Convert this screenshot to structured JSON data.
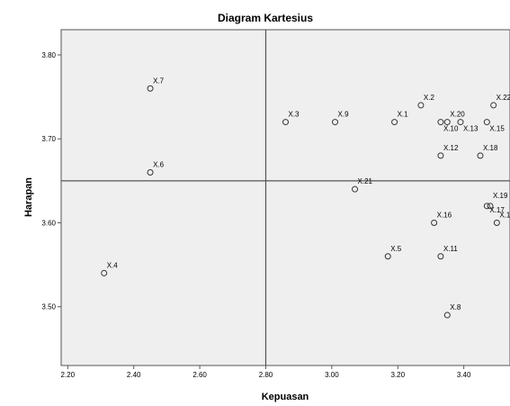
{
  "chart_data": {
    "type": "scatter",
    "title": "Diagram Kartesius",
    "xlabel": "Kepuasan",
    "ylabel": "Harapan",
    "xlim": [
      2.18,
      3.54
    ],
    "ylim": [
      3.43,
      3.83
    ],
    "xticks": [
      "2.20",
      "2.40",
      "2.60",
      "2.80",
      "3.00",
      "3.20",
      "3.40"
    ],
    "yticks": [
      "3.50",
      "3.60",
      "3.70",
      "3.80"
    ],
    "reference_lines": {
      "x": 2.8,
      "y": 3.65
    },
    "grid": false,
    "background": "#efefef",
    "points": [
      {
        "label": "X.7",
        "x": 2.45,
        "y": 3.76
      },
      {
        "label": "X.6",
        "x": 2.45,
        "y": 3.66
      },
      {
        "label": "X.4",
        "x": 2.31,
        "y": 3.54
      },
      {
        "label": "X.3",
        "x": 2.86,
        "y": 3.72
      },
      {
        "label": "X.9",
        "x": 3.01,
        "y": 3.72
      },
      {
        "label": "X.1",
        "x": 3.19,
        "y": 3.72
      },
      {
        "label": "X.2",
        "x": 3.27,
        "y": 3.74
      },
      {
        "label": "X.20",
        "x": 3.35,
        "y": 3.72
      },
      {
        "label": "X.10",
        "x": 3.33,
        "y": 3.72
      },
      {
        "label": "X.13",
        "x": 3.39,
        "y": 3.72
      },
      {
        "label": "X.15",
        "x": 3.47,
        "y": 3.72
      },
      {
        "label": "X.22",
        "x": 3.49,
        "y": 3.74
      },
      {
        "label": "X.12",
        "x": 3.33,
        "y": 3.68
      },
      {
        "label": "X.18",
        "x": 3.45,
        "y": 3.68
      },
      {
        "label": "X.21",
        "x": 3.07,
        "y": 3.64
      },
      {
        "label": "X.19",
        "x": 3.48,
        "y": 3.62
      },
      {
        "label": "X.17",
        "x": 3.47,
        "y": 3.62
      },
      {
        "label": "X.16",
        "x": 3.31,
        "y": 3.6
      },
      {
        "label": "X.1",
        "x": 3.5,
        "y": 3.6
      },
      {
        "label": "X.5",
        "x": 3.17,
        "y": 3.56
      },
      {
        "label": "X.11",
        "x": 3.33,
        "y": 3.56
      },
      {
        "label": "X.8",
        "x": 3.35,
        "y": 3.49
      }
    ]
  }
}
